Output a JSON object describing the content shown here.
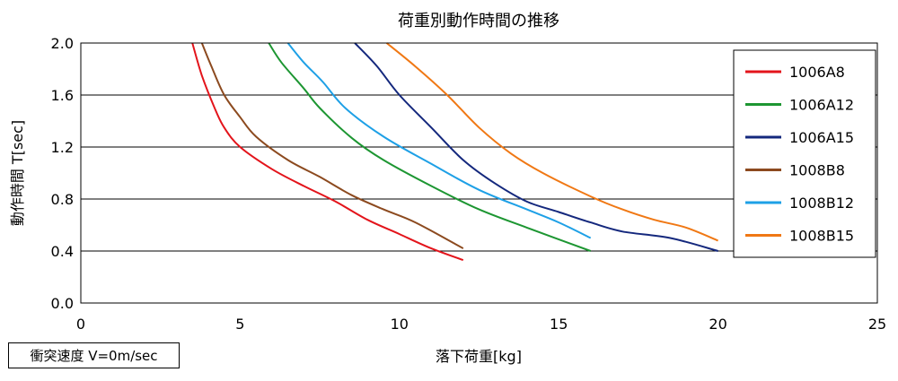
{
  "chart_data": {
    "type": "line",
    "title": "荷重別動作時間の推移",
    "xlabel": "落下荷重[kg]",
    "ylabel": "動作時間 T[sec]",
    "xlim": [
      0,
      25
    ],
    "ylim": [
      0,
      2.0
    ],
    "x_ticks": [
      "0",
      "5",
      "10",
      "15",
      "20",
      "25"
    ],
    "y_ticks": [
      "0.0",
      "0.4",
      "0.8",
      "1.2",
      "1.6",
      "2.0"
    ],
    "grid": "horizontal",
    "legend_position": "right",
    "series": [
      {
        "name": "1006A8",
        "color": "#e3141b",
        "points": [
          [
            3.5,
            2.0
          ],
          [
            3.8,
            1.75
          ],
          [
            4.2,
            1.5
          ],
          [
            4.5,
            1.35
          ],
          [
            5.0,
            1.2
          ],
          [
            6.0,
            1.03
          ],
          [
            7.0,
            0.9
          ],
          [
            8.0,
            0.78
          ],
          [
            9.0,
            0.64
          ],
          [
            10.0,
            0.53
          ],
          [
            11.0,
            0.42
          ],
          [
            12.0,
            0.33
          ]
        ]
      },
      {
        "name": "1006A12",
        "color": "#1d9632",
        "points": [
          [
            5.9,
            2.0
          ],
          [
            6.3,
            1.85
          ],
          [
            7.0,
            1.65
          ],
          [
            7.5,
            1.5
          ],
          [
            8.5,
            1.27
          ],
          [
            9.5,
            1.1
          ],
          [
            11.0,
            0.9
          ],
          [
            12.5,
            0.72
          ],
          [
            14.0,
            0.58
          ],
          [
            16.0,
            0.4
          ]
        ]
      },
      {
        "name": "1006A15",
        "color": "#14287d",
        "points": [
          [
            8.6,
            2.0
          ],
          [
            9.3,
            1.82
          ],
          [
            10.0,
            1.6
          ],
          [
            11.0,
            1.35
          ],
          [
            12.0,
            1.1
          ],
          [
            13.0,
            0.92
          ],
          [
            14.0,
            0.78
          ],
          [
            15.0,
            0.7
          ],
          [
            16.0,
            0.62
          ],
          [
            17.0,
            0.55
          ],
          [
            18.5,
            0.5
          ],
          [
            20.0,
            0.4
          ]
        ]
      },
      {
        "name": "1008B8",
        "color": "#8c4a1f",
        "points": [
          [
            3.8,
            2.0
          ],
          [
            4.1,
            1.82
          ],
          [
            4.5,
            1.6
          ],
          [
            5.0,
            1.43
          ],
          [
            5.5,
            1.28
          ],
          [
            6.5,
            1.1
          ],
          [
            7.5,
            0.97
          ],
          [
            8.5,
            0.83
          ],
          [
            9.5,
            0.72
          ],
          [
            10.5,
            0.62
          ],
          [
            12.0,
            0.42
          ]
        ]
      },
      {
        "name": "1008B12",
        "color": "#1ea0e6",
        "points": [
          [
            6.5,
            2.0
          ],
          [
            7.0,
            1.85
          ],
          [
            7.6,
            1.7
          ],
          [
            8.3,
            1.5
          ],
          [
            9.5,
            1.28
          ],
          [
            11.0,
            1.07
          ],
          [
            12.5,
            0.87
          ],
          [
            14.0,
            0.72
          ],
          [
            15.0,
            0.62
          ],
          [
            16.0,
            0.5
          ]
        ]
      },
      {
        "name": "1008B15",
        "color": "#f07814",
        "points": [
          [
            9.6,
            2.0
          ],
          [
            10.5,
            1.82
          ],
          [
            11.5,
            1.6
          ],
          [
            12.5,
            1.35
          ],
          [
            13.5,
            1.15
          ],
          [
            14.5,
            1.0
          ],
          [
            16.0,
            0.82
          ],
          [
            17.0,
            0.72
          ],
          [
            18.0,
            0.64
          ],
          [
            19.0,
            0.58
          ],
          [
            20.0,
            0.48
          ]
        ]
      }
    ]
  },
  "note": "衝突速度 V=0m/sec"
}
